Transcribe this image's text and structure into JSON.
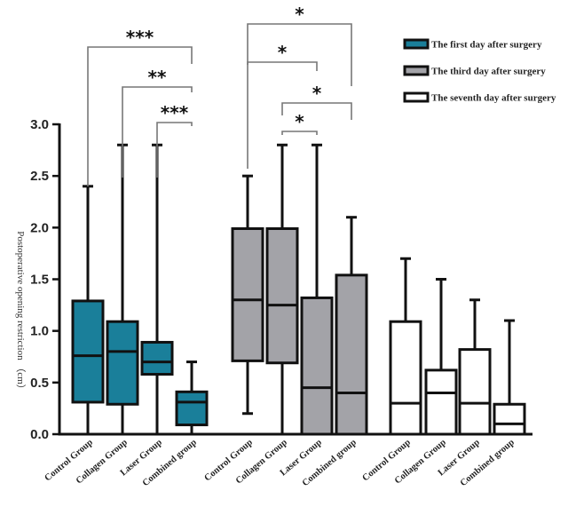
{
  "chart_data": {
    "type": "boxplot",
    "title": "",
    "xlabel": "",
    "ylabel": "Postoperative opening restriction （cm）",
    "ylim": [
      0,
      3.0
    ],
    "yticks": [
      "0.0",
      "0.5",
      "1.0",
      "1.5",
      "2.0",
      "2.5",
      "3.0"
    ],
    "grid": false,
    "legend_position": "top-right",
    "categories": [
      "Control Group",
      "Collagen Group",
      "Laser Group",
      "Combined group"
    ],
    "series": [
      {
        "name": "The first day after surgery",
        "color": "#1a7f9a",
        "boxes": [
          {
            "category": "Control Group",
            "min": 0.0,
            "q1": 0.31,
            "median": 0.76,
            "q3": 1.29,
            "max": 2.4
          },
          {
            "category": "Collagen Group",
            "min": 0.0,
            "q1": 0.29,
            "median": 0.8,
            "q3": 1.09,
            "max": 2.8
          },
          {
            "category": "Laser Group",
            "min": 0.0,
            "q1": 0.58,
            "median": 0.7,
            "q3": 0.89,
            "max": 2.8
          },
          {
            "category": "Combined group",
            "min": 0.0,
            "q1": 0.09,
            "median": 0.31,
            "q3": 0.41,
            "max": 0.7
          }
        ]
      },
      {
        "name": "The third day after surgery",
        "color": "#a3a3a8",
        "boxes": [
          {
            "category": "Control Group",
            "min": 0.2,
            "q1": 0.71,
            "median": 1.3,
            "q3": 1.99,
            "max": 2.5
          },
          {
            "category": "Collagen Group",
            "min": 0.0,
            "q1": 0.69,
            "median": 1.25,
            "q3": 1.99,
            "max": 2.8
          },
          {
            "category": "Laser Group",
            "min": 0.0,
            "q1": 0.0,
            "median": 0.45,
            "q3": 1.32,
            "max": 2.8
          },
          {
            "category": "Combined group",
            "min": 0.0,
            "q1": 0.0,
            "median": 0.4,
            "q3": 1.54,
            "max": 2.1
          }
        ]
      },
      {
        "name": "The seventh day after surgery",
        "color": "#ffffff",
        "boxes": [
          {
            "category": "Control Group",
            "min": 0.0,
            "q1": 0.0,
            "median": 0.3,
            "q3": 1.09,
            "max": 1.7
          },
          {
            "category": "Collagen Group",
            "min": 0.0,
            "q1": 0.0,
            "median": 0.4,
            "q3": 0.62,
            "max": 1.5
          },
          {
            "category": "Laser Group",
            "min": 0.0,
            "q1": 0.0,
            "median": 0.3,
            "q3": 0.82,
            "max": 1.3
          },
          {
            "category": "Combined group",
            "min": 0.0,
            "q1": 0.0,
            "median": 0.1,
            "q3": 0.29,
            "max": 1.1
          }
        ]
      }
    ],
    "annotations": [
      {
        "series": 0,
        "from": "Control Group",
        "to": "Combined group",
        "label": "***"
      },
      {
        "series": 0,
        "from": "Collagen Group",
        "to": "Combined group",
        "label": "**"
      },
      {
        "series": 0,
        "from": "Laser Group",
        "to": "Combined group",
        "label": "***"
      },
      {
        "series": 1,
        "from": "Control Group",
        "to": "Combined group",
        "label": "*"
      },
      {
        "series": 1,
        "from": "Control Group",
        "to": "Laser Group",
        "label": "*"
      },
      {
        "series": 1,
        "from": "Collagen Group",
        "to": "Combined group",
        "label": "*"
      },
      {
        "series": 1,
        "from": "Collagen Group",
        "to": "Laser Group",
        "label": "*"
      }
    ]
  }
}
